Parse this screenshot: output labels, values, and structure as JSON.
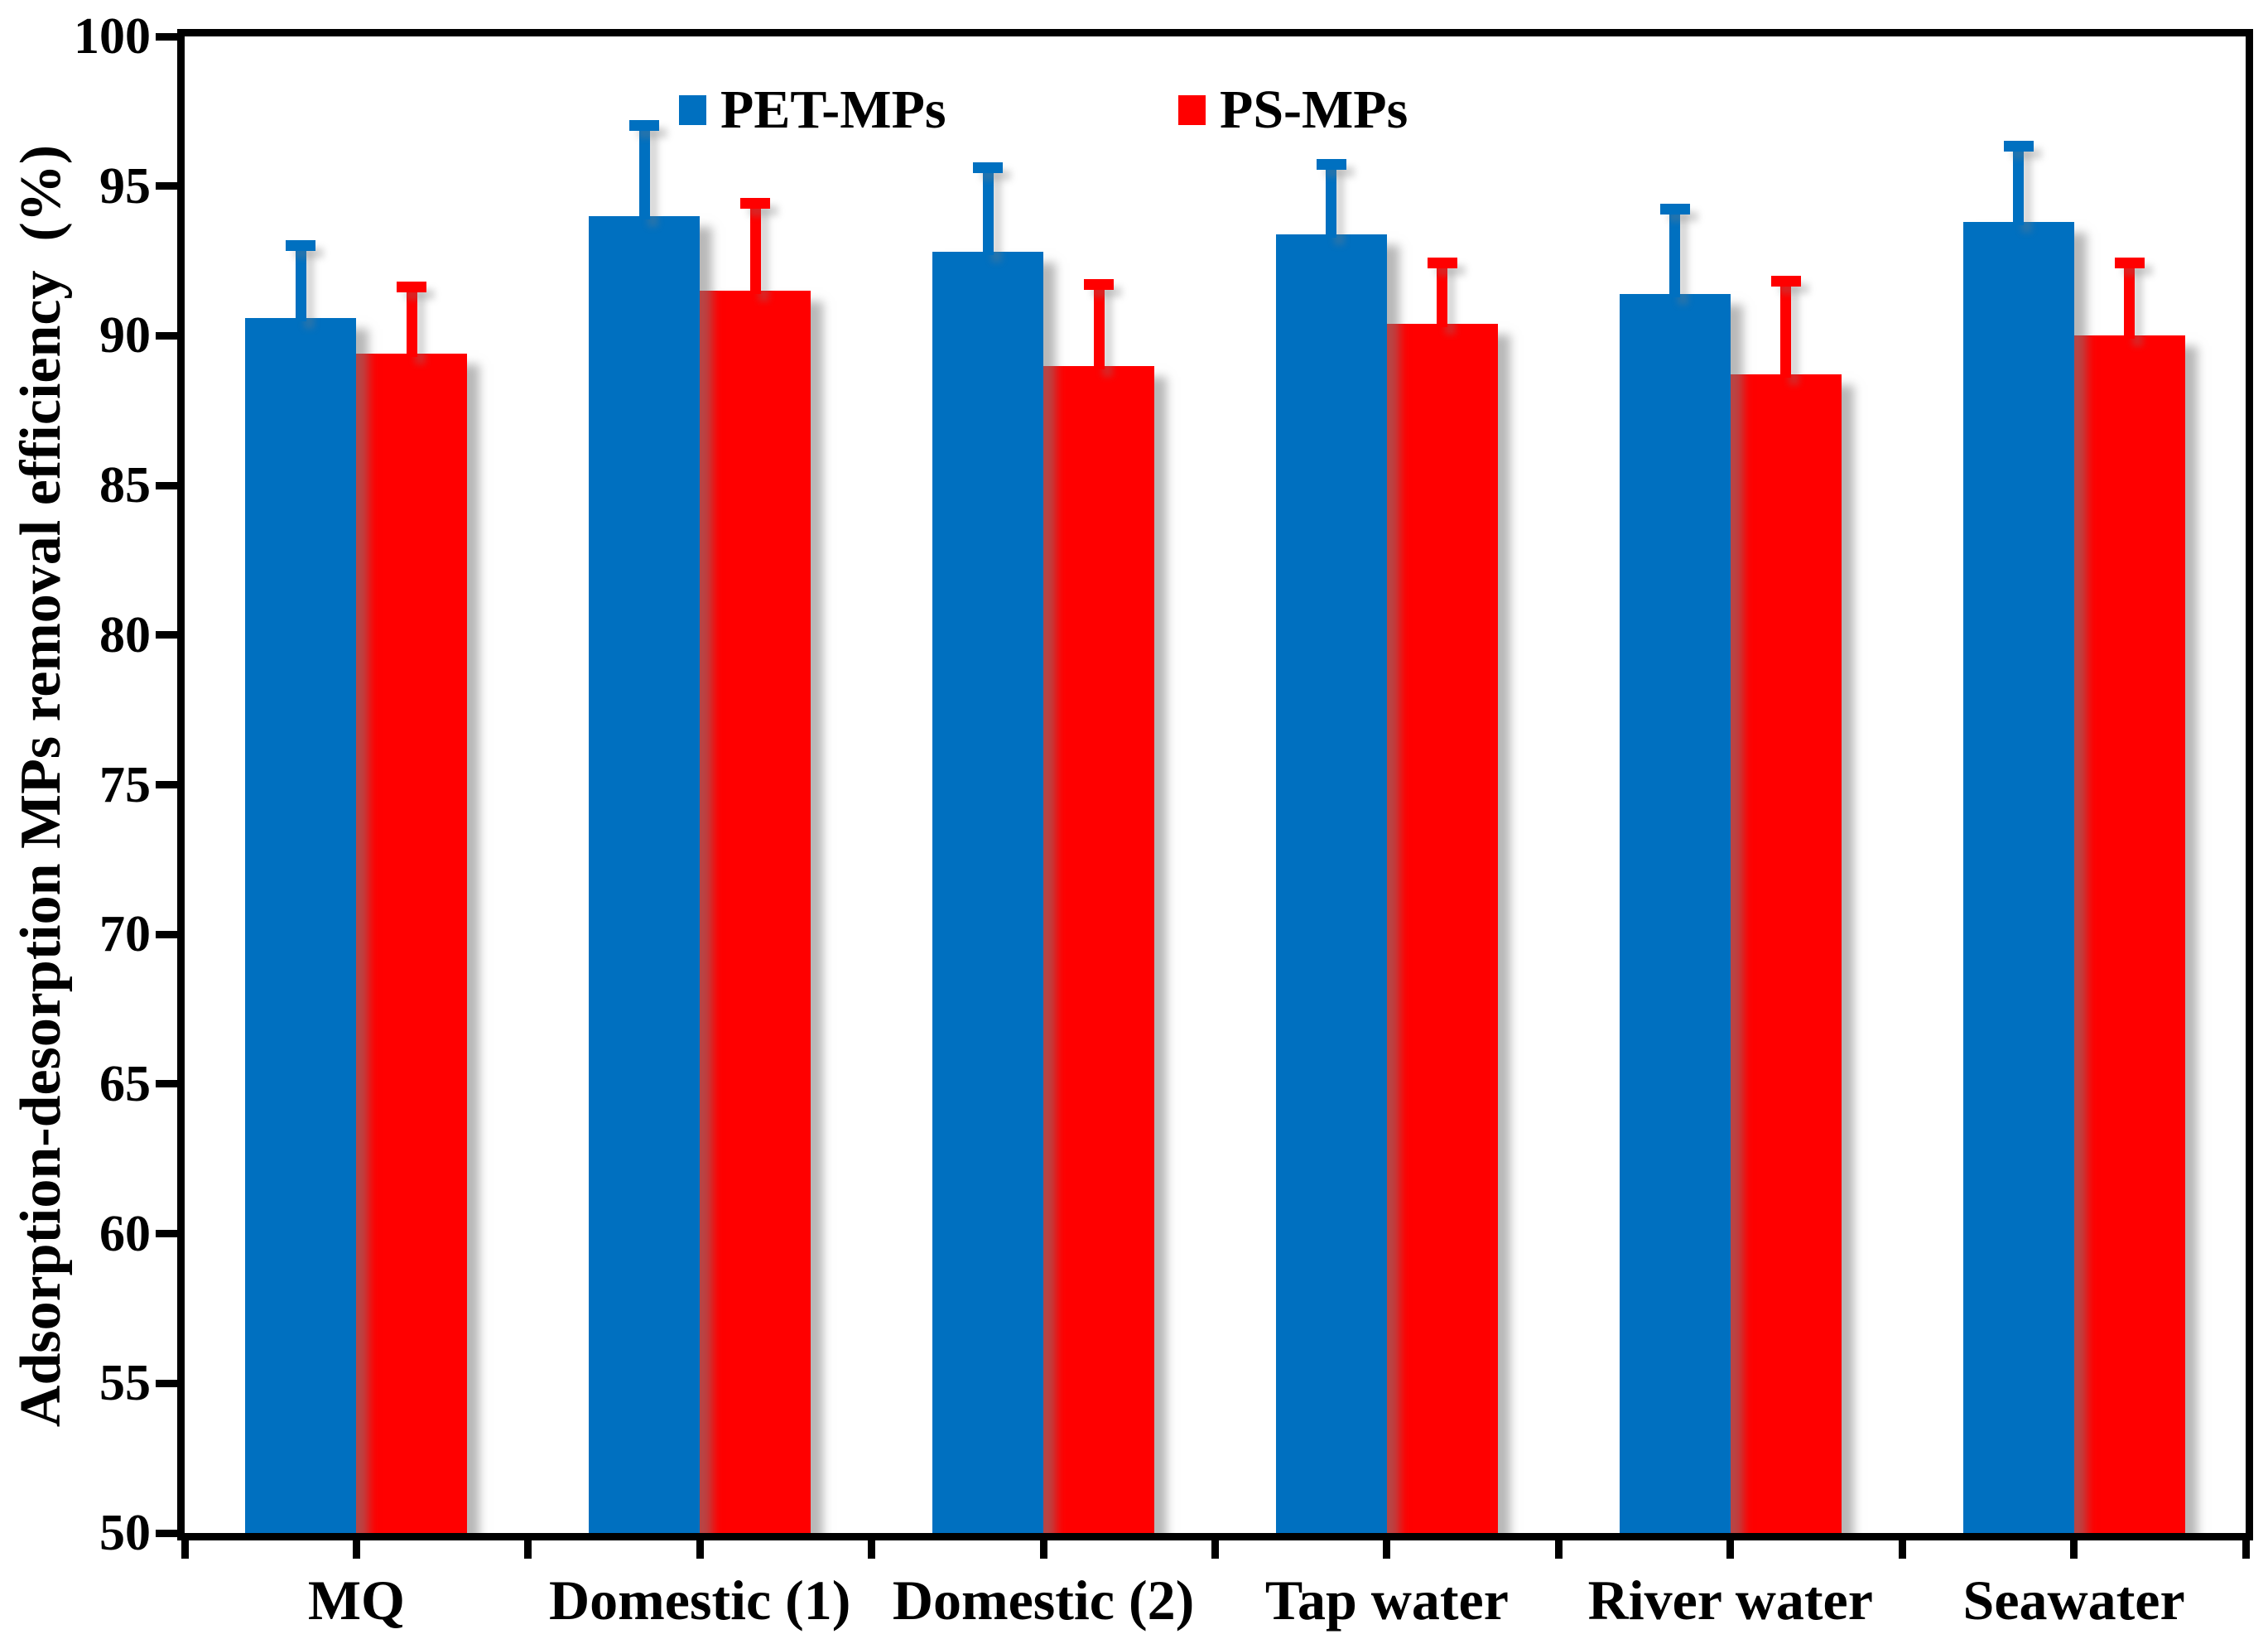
{
  "chart_data": {
    "type": "bar",
    "title": "",
    "ylabel": "Adsorption-desorption MPs removal efficiency  (%)",
    "xlabel": "",
    "ylim": [
      50,
      100
    ],
    "y_ticks": [
      50,
      55,
      60,
      65,
      70,
      75,
      80,
      85,
      90,
      95,
      100
    ],
    "grid": false,
    "legend_position": "top-inside",
    "background": "#FFFFFF",
    "axis_color": "#000000",
    "categories": [
      "MQ",
      "Domestic (1)",
      "Domestic (2)",
      "Tap water",
      "River water",
      "Seawater"
    ],
    "series": [
      {
        "name": "PET-MPs",
        "color": "#0070C0",
        "values": [
          90.6,
          94.0,
          92.8,
          93.4,
          91.4,
          93.8
        ],
        "errors_plus": [
          2.6,
          3.2,
          3.0,
          2.5,
          3.0,
          2.7
        ]
      },
      {
        "name": "PS-MPs",
        "color": "#FF0000",
        "values": [
          89.4,
          91.5,
          89.0,
          90.4,
          88.7,
          90.0
        ],
        "errors_plus": [
          2.4,
          3.1,
          2.9,
          2.2,
          3.3,
          2.6
        ]
      }
    ]
  }
}
